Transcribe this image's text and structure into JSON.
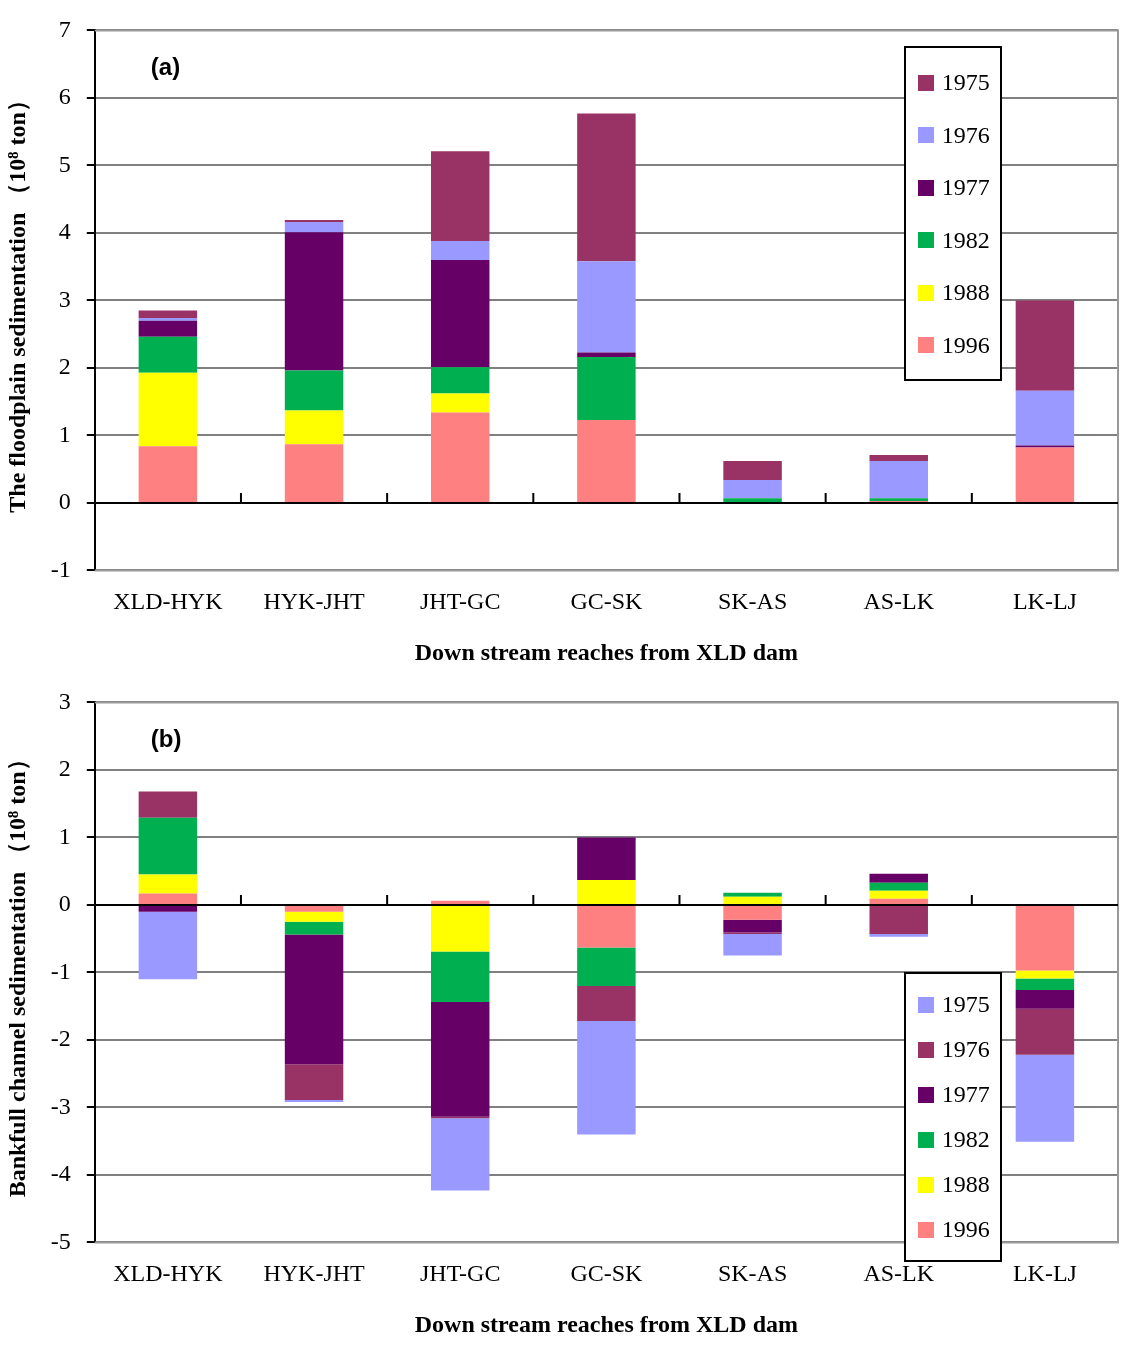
{
  "chart_data": [
    {
      "type": "bar",
      "stacked": true,
      "annotations": [
        "(a)"
      ],
      "xlabel": "Down stream reaches from XLD dam",
      "ylabel": "The floodplain sedimentation （10⁸ ton）",
      "categories": [
        "XLD-HYK",
        "HYK-JHT",
        "JHT-GC",
        "GC-SK",
        "SK-AS",
        "AS-LK",
        "LK-LJ"
      ],
      "series": [
        {
          "name": "1996",
          "color": "#ff8080",
          "values": [
            0.84,
            0.87,
            1.34,
            1.23,
            0,
            0.03,
            0.82
          ]
        },
        {
          "name": "1988",
          "color": "#ffff00",
          "values": [
            1.09,
            0.5,
            0.28,
            0,
            0,
            0,
            0
          ]
        },
        {
          "name": "1982",
          "color": "#00b050",
          "values": [
            0.53,
            0.59,
            0.39,
            0.93,
            0.07,
            0.04,
            0
          ]
        },
        {
          "name": "1977",
          "color": "#660066",
          "values": [
            0.24,
            2.05,
            1.59,
            0.07,
            0,
            0,
            0.03
          ]
        },
        {
          "name": "1976",
          "color": "#9999ff",
          "values": [
            0.04,
            0.15,
            0.28,
            1.35,
            0.27,
            0.55,
            0.81
          ]
        },
        {
          "name": "1975",
          "color": "#993366",
          "values": [
            0.11,
            0.03,
            1.33,
            2.19,
            0.28,
            0.09,
            1.34
          ]
        }
      ],
      "ylim": [
        -1,
        7
      ],
      "yticks": [
        -1,
        0,
        1,
        2,
        3,
        4,
        5,
        6,
        7
      ],
      "grid": "y",
      "legend": "top right"
    },
    {
      "type": "bar",
      "stacked": true,
      "annotations": [
        "(b)"
      ],
      "xlabel": "Down stream reaches from XLD dam",
      "ylabel": "Bankfull channel sedimentation （10⁸ ton）",
      "categories": [
        "XLD-HYK",
        "HYK-JHT",
        "JHT-GC",
        "GC-SK",
        "SK-AS",
        "AS-LK",
        "LK-LJ"
      ],
      "series": [
        {
          "name": "1996",
          "color": "#ff8080",
          "values": [
            0.17,
            -0.1,
            0.06,
            -0.63,
            -0.22,
            0.09,
            -0.97
          ]
        },
        {
          "name": "1988",
          "color": "#ffff00",
          "values": [
            0.28,
            -0.15,
            -0.69,
            0.37,
            0.12,
            0.12,
            -0.12
          ]
        },
        {
          "name": "1982",
          "color": "#00b050",
          "values": [
            0.84,
            -0.19,
            -0.75,
            -0.57,
            0.06,
            0.12,
            -0.17
          ]
        },
        {
          "name": "1977",
          "color": "#660066",
          "values": [
            -0.1,
            -1.92,
            -1.7,
            0.63,
            -0.19,
            0.13,
            -0.28
          ]
        },
        {
          "name": "1976",
          "color": "#993366",
          "values": [
            0.39,
            -0.53,
            -0.02,
            -0.52,
            -0.02,
            -0.43,
            -0.68
          ]
        },
        {
          "name": "1975",
          "color": "#9999ff",
          "values": [
            -1.0,
            -0.03,
            -1.07,
            -1.68,
            -0.32,
            -0.04,
            -1.29
          ]
        }
      ],
      "ylim": [
        -5,
        3
      ],
      "yticks": [
        -5,
        -4,
        -3,
        -2,
        -1,
        0,
        1,
        2,
        3
      ],
      "grid": "y",
      "legend": "bottom right"
    }
  ]
}
